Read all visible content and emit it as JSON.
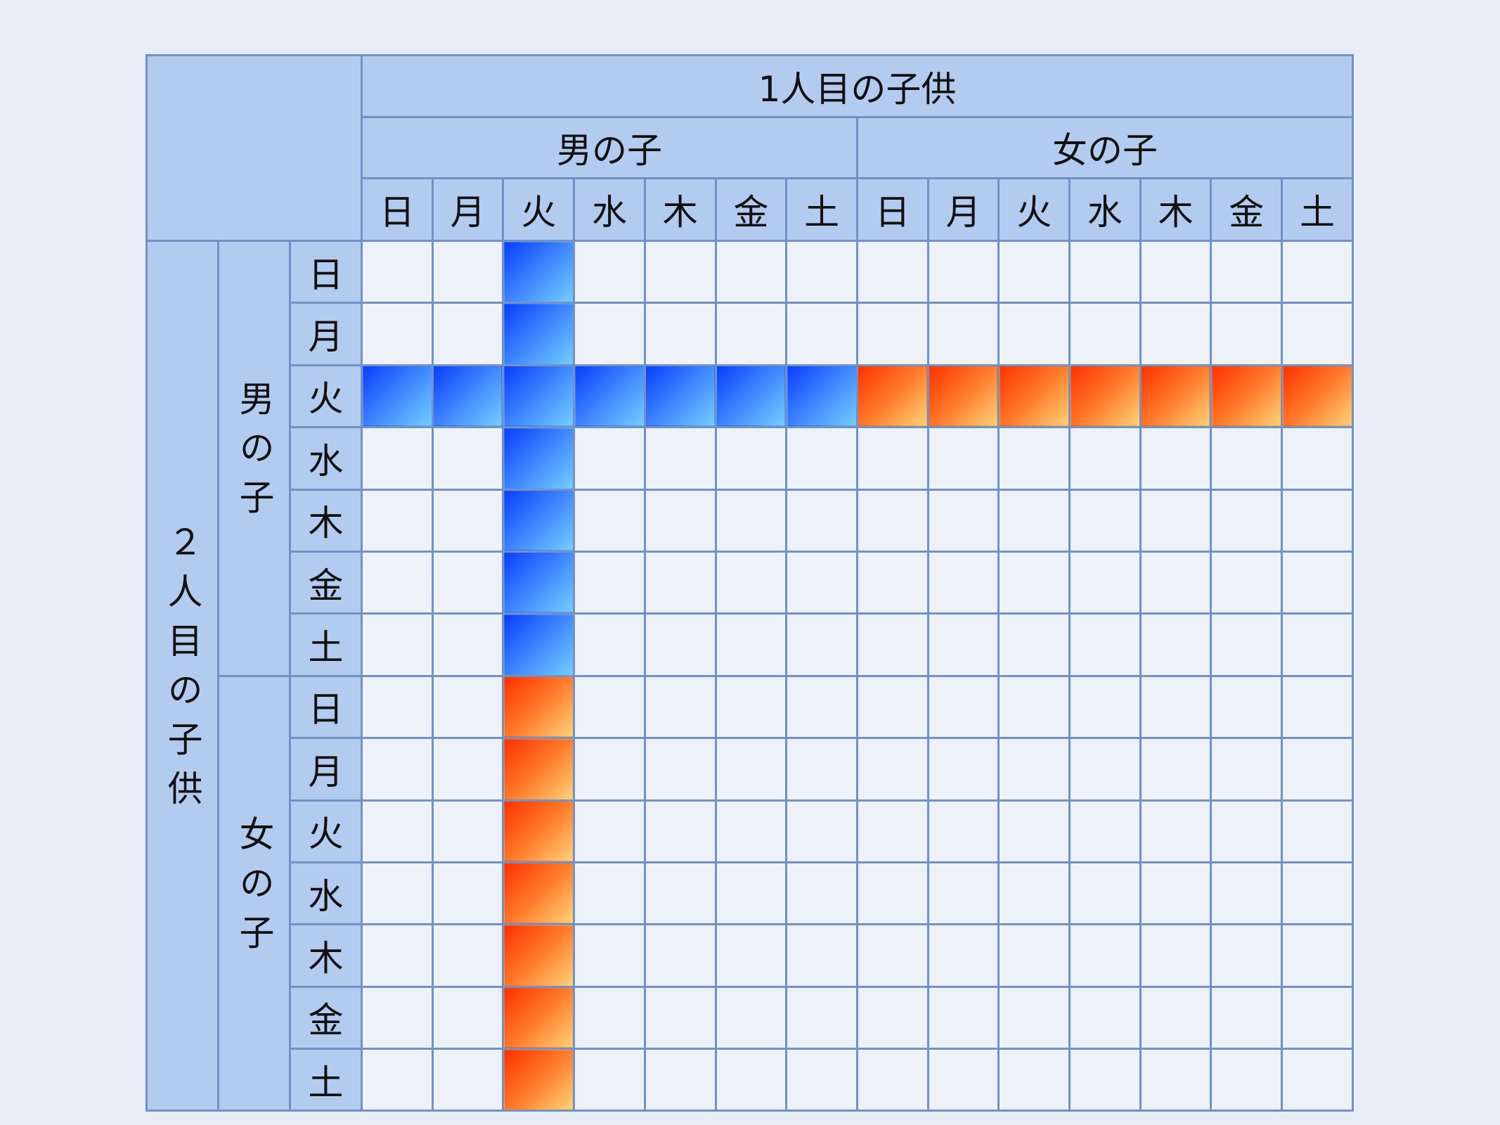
{
  "title": "1人目の子供",
  "column_groups": [
    "男の子",
    "女の子"
  ],
  "row_title": "２人目の子供",
  "row_groups": [
    "男の子",
    "女の子"
  ],
  "days": [
    "日",
    "月",
    "火",
    "水",
    "木",
    "金",
    "土"
  ],
  "colors": {
    "boy": "#1f5cff",
    "girl": "#ff6a1a",
    "header": "#b2cbef",
    "border": "#7391c2"
  },
  "highlighted": {
    "description_rows": "2人目の子供が火曜生まれの男の子の行",
    "boy_tuesday_row": {
      "row_group": "男の子",
      "day": "火"
    },
    "boy_tuesday_column": {
      "column_group": "男の子",
      "day": "火"
    }
  }
}
